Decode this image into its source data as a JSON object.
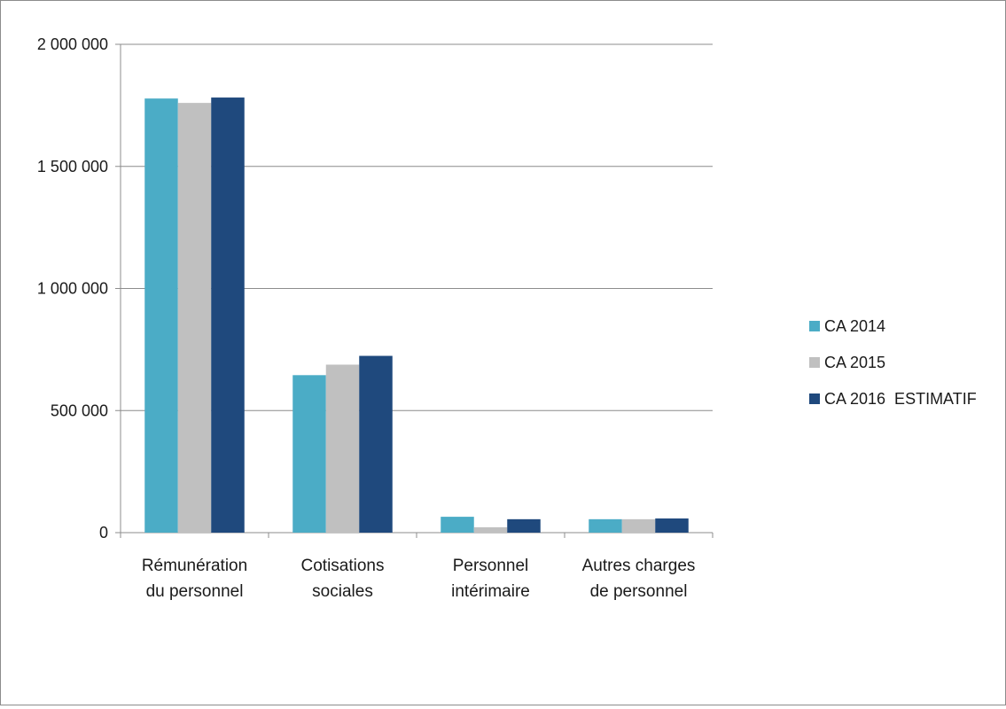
{
  "chart_data": {
    "type": "bar",
    "title": "",
    "xlabel": "",
    "ylabel": "",
    "categories": [
      [
        "Rémunération",
        "du personnel"
      ],
      [
        "Cotisations",
        "sociales"
      ],
      [
        "Personnel",
        "intérimaire"
      ],
      [
        "Autres charges",
        "de personnel"
      ]
    ],
    "series": [
      {
        "name": "CA 2014",
        "color": "#4bacc6",
        "values": [
          1778000,
          645000,
          65000,
          55000
        ]
      },
      {
        "name": "CA 2015",
        "color": "#c0c0c0",
        "values": [
          1760000,
          688000,
          22000,
          55000
        ]
      },
      {
        "name": "CA 2016  ESTIMATIF",
        "color": "#1f497d",
        "values": [
          1782000,
          724000,
          55000,
          58000
        ]
      }
    ],
    "ylim": [
      0,
      2000000
    ],
    "yticks": [
      0,
      500000,
      1000000,
      1500000,
      2000000
    ],
    "ytick_labels": [
      "0",
      "500 000",
      "1 000 000",
      "1 500 000",
      "2 000 000"
    ],
    "grid": true,
    "legend_position": "right"
  }
}
